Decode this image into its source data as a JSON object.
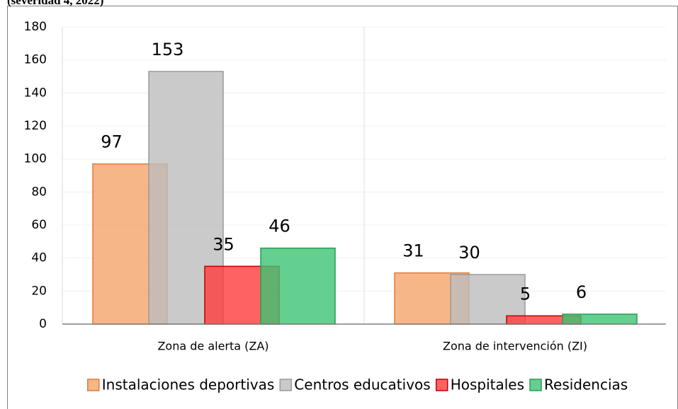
{
  "chart_data": {
    "type": "bar",
    "title": "(severidad 4, 2022)",
    "categories": [
      "Zona de alerta (ZA)",
      "Zona de intervención (ZI)"
    ],
    "series": [
      {
        "name": "Instalaciones deportivas",
        "color": "#f4a46a",
        "values": [
          97,
          31
        ]
      },
      {
        "name": "Centros educativos",
        "color": "#bdbdbd",
        "values": [
          153,
          30
        ]
      },
      {
        "name": "Hospitales",
        "color": "#ff3b3b",
        "values": [
          35,
          5
        ]
      },
      {
        "name": "Residencias",
        "color": "#3cc473",
        "values": [
          46,
          6
        ]
      }
    ],
    "ylim": [
      0,
      180
    ],
    "yticks": [
      0,
      20,
      40,
      60,
      80,
      100,
      120,
      140,
      160,
      180
    ],
    "grid": true,
    "legend": "bottom"
  }
}
